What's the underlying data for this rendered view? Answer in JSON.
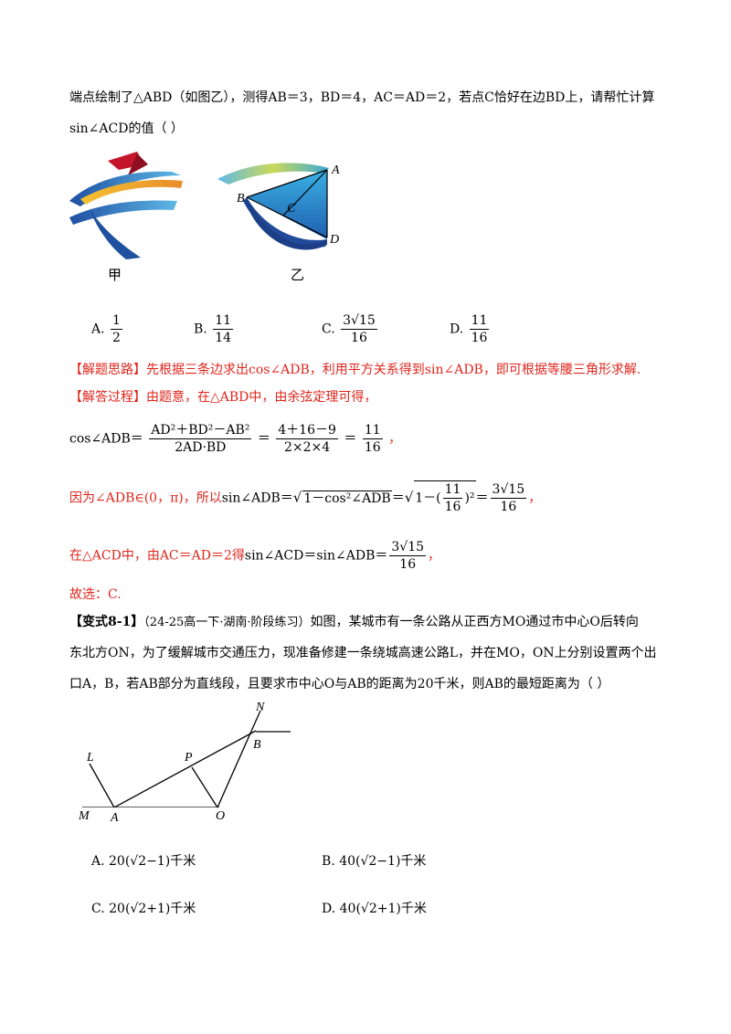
{
  "q8": {
    "line1": "端点绘制了△ABD（如图乙），测得AB＝3，BD＝4，AC＝AD＝2，若点C恰好在边BD上，请帮忙计算",
    "line2": "sin∠ACD的值（    ）",
    "fig_left_label": "甲",
    "fig_right_label": "乙",
    "fig_points": {
      "A": "A",
      "B": "B",
      "C": "C",
      "D": "D"
    },
    "options": [
      {
        "letter": "A.",
        "num": "1",
        "den": "2"
      },
      {
        "letter": "B.",
        "num": "11",
        "den": "14"
      },
      {
        "letter": "C.",
        "num": "3√15",
        "den": "16"
      },
      {
        "letter": "D.",
        "num": "11",
        "den": "16"
      }
    ]
  },
  "solution": {
    "idea_tag": "【解题思路】",
    "idea_text": "先根据三条边求出cos∠ADB，利用平方关系得到sin∠ADB，即可根据等腰三角形求解.",
    "process_tag": "【解答过程】",
    "process_text": "由题意，在△ABD中，由余弦定理可得，",
    "eq1_lhs": "cos∠ADB＝",
    "eq1_f1_num": "AD²＋BD²－AB²",
    "eq1_f1_den": "2AD·BD",
    "eq1_f2_num": "4＋16－9",
    "eq1_f2_den": "2×2×4",
    "eq1_f3_num": "11",
    "eq1_f3_den": "16",
    "eq2_pre": "因为∠ADB∈(0，π)，所以",
    "eq2_mid": "sin∠ADB＝",
    "eq2_rad1": "1－cos²∠ADB",
    "eq2_rad2_pre": "1－(",
    "eq2_frac_num": "11",
    "eq2_frac_den": "16",
    "eq2_res_num": "3√15",
    "eq2_res_den": "16",
    "eq3_pre": "在△ACD中，由AC＝AD＝2得",
    "eq3_mid": "sin∠ACD＝sin∠ADB＝",
    "eq3_res_num": "3√15",
    "eq3_res_den": "16",
    "answer": "故选：C."
  },
  "variant": {
    "tag": "【变式8-1】",
    "source": "（24-25高一下·湖南·阶段练习）",
    "line1": "如图，某城市有一条公路从正西方MO通过市中心O后转向",
    "line2": "东北方ON，为了缓解城市交通压力，现准备修建一条绕城高速公路L，并在MO，ON上分别设置两个出",
    "line3": "口A，B，若AB部分为直线段，且要求市中心O与AB的距离为20千米，则AB的最短距离为（    ）",
    "fig_points": {
      "L": "L",
      "P": "P",
      "N": "N",
      "B": "B",
      "M": "M",
      "A": "A",
      "O": "O"
    },
    "options": [
      {
        "letter": "A.",
        "text": "20(√2−1)千米"
      },
      {
        "letter": "B.",
        "text": "40(√2−1)千米"
      },
      {
        "letter": "C.",
        "text": "20(√2+1)千米"
      },
      {
        "letter": "D.",
        "text": "40(√2+1)千米"
      }
    ]
  }
}
